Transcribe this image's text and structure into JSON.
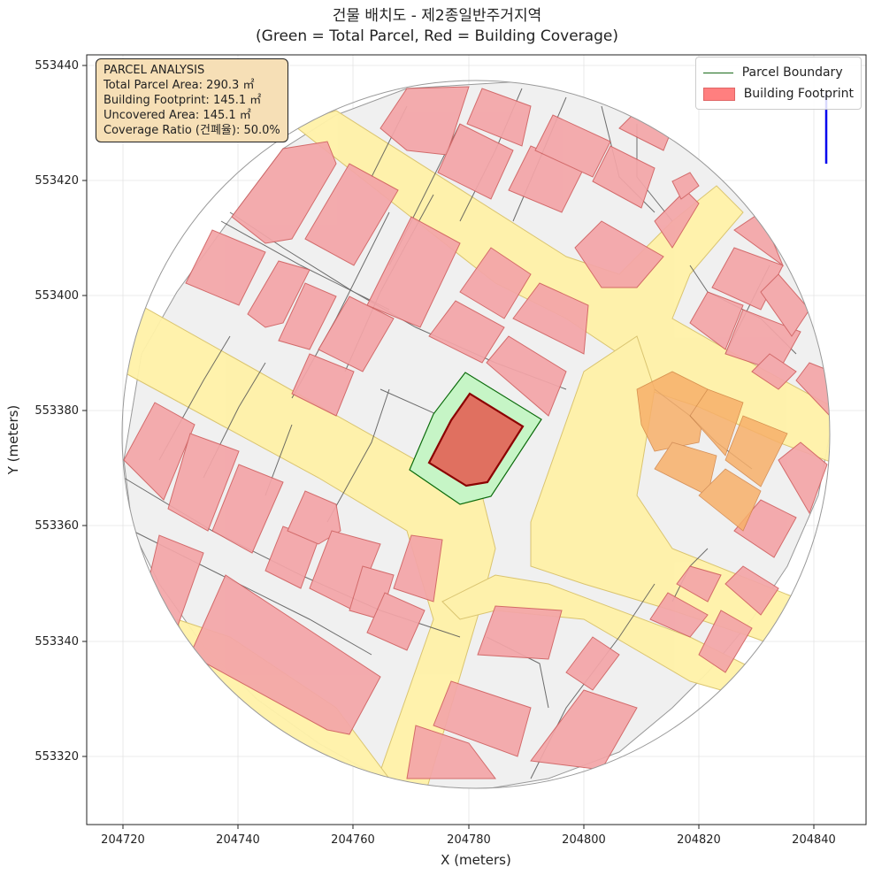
{
  "title": {
    "line1": "건물 배치도 - 제2종일반주거지역",
    "line2": "(Green = Total Parcel, Red = Building Coverage)"
  },
  "axes": {
    "xlabel": "X (meters)",
    "ylabel": "Y (meters)",
    "xticks": [
      "204720",
      "204740",
      "204760",
      "204780",
      "204800",
      "204820",
      "204840"
    ],
    "yticks": [
      "553440",
      "553420",
      "553400",
      "553380",
      "553360",
      "553340",
      "553320"
    ],
    "grid": true
  },
  "legend": {
    "position": "top-right",
    "items": [
      {
        "label": "Parcel Boundary",
        "color": "#1a6b1a",
        "kind": "line"
      },
      {
        "label": "Building Footprint",
        "color": "#ff7f7f",
        "kind": "patch"
      }
    ]
  },
  "analysis": {
    "heading": "PARCEL ANALYSIS",
    "lines": [
      "Total Parcel Area: 290.3 ㎡",
      "Building Footprint: 145.1 ㎡",
      "Uncovered Area: 145.1 ㎡",
      "Coverage Ratio (건폐율): 50.0%"
    ]
  },
  "colors": {
    "road": "#fff2a8",
    "building": "#f4a5a8",
    "building_stroke": "#d06060",
    "overlap": "#f8b06a",
    "parcel_fill": "#c6f5c6",
    "parcel_stroke": "#0b6b0b",
    "footprint_fill": "#e07060",
    "footprint_stroke": "#8b0000",
    "background": "#f0f0f0",
    "north_arrow": "#0000ee"
  }
}
